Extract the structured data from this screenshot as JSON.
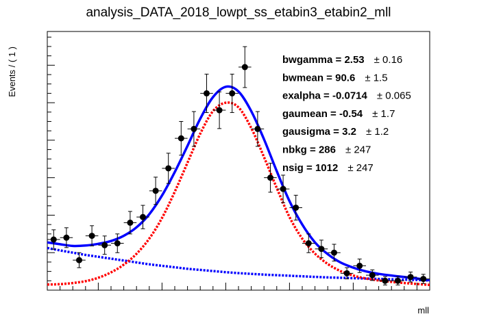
{
  "chart_data": {
    "type": "scatter",
    "title": "analysis_DATA_2018_lowpt_ss_etabin3_etabin2_mll",
    "xlabel": "mll",
    "ylabel": "Events / ( 1 )",
    "xlim": [
      76,
      106
    ],
    "ylim": [
      0,
      138
    ],
    "xticks": [
      80,
      85,
      90,
      95,
      100,
      105
    ],
    "yticks": [
      0,
      20,
      40,
      60,
      80,
      100,
      120
    ],
    "grid": false,
    "data_points": {
      "x": [
        76.5,
        77.5,
        78.5,
        79.5,
        80.5,
        81.5,
        82.5,
        83.5,
        84.5,
        85.5,
        86.5,
        87.5,
        88.5,
        89.5,
        90.5,
        91.5,
        92.5,
        93.5,
        94.5,
        95.5,
        96.5,
        97.5,
        98.5,
        99.5,
        100.5,
        101.5,
        102.5,
        103.5,
        104.5,
        105.5
      ],
      "y": [
        27,
        28,
        16,
        29,
        24,
        25,
        36,
        39,
        53,
        65,
        81,
        86,
        105,
        96,
        105,
        119,
        86,
        60,
        54,
        44,
        25,
        22,
        20,
        9,
        13,
        8,
        5,
        5,
        7,
        6
      ]
    },
    "series": [
      {
        "name": "",
        "style": "solid",
        "color": "#0000ff"
      },
      {
        "name": "",
        "style": "dotted",
        "color": "#ff0000"
      },
      {
        "name": "",
        "style": "dotted",
        "color": "#0000ff"
      }
    ],
    "curves": {
      "x": [
        76,
        77,
        78,
        79,
        80,
        81,
        82,
        83,
        84,
        85,
        86,
        87,
        88,
        89,
        90,
        91,
        92,
        93,
        94,
        95,
        96,
        97,
        98,
        99,
        100,
        101,
        102,
        103,
        104,
        105,
        106
      ],
      "total": [
        25.5,
        24.5,
        23.6,
        23.8,
        24.7,
        26.2,
        29,
        33.5,
        40.5,
        50.5,
        63,
        77,
        91.5,
        103,
        108.5,
        106,
        95.5,
        80.5,
        63.5,
        47.5,
        35,
        25.5,
        19.2,
        14.8,
        12,
        10,
        8.7,
        7.8,
        7,
        6.2,
        5.3
      ],
      "signal": [
        3,
        3.2,
        3.8,
        4.8,
        6.6,
        9.5,
        13.6,
        19.4,
        27.5,
        38.5,
        52.5,
        68,
        83.5,
        95.5,
        100,
        97.5,
        86.5,
        71,
        54.5,
        39,
        27.5,
        19.5,
        14,
        10.2,
        7.8,
        6.2,
        5.2,
        4.4,
        3.8,
        3.3,
        2.8
      ],
      "background": [
        22.5,
        21.2,
        20,
        18.8,
        17.8,
        16.8,
        15.8,
        14.8,
        13.8,
        13,
        12.2,
        11.4,
        10.8,
        10.2,
        9.6,
        9.1,
        8.7,
        8.3,
        8,
        7.7,
        7.4,
        7.1,
        6.8,
        6.6,
        6.4,
        6.2,
        6,
        5.8,
        5.6,
        5.4,
        5.2
      ]
    },
    "parameters": [
      {
        "name": "bwgamma",
        "value": "2.53",
        "error": "0.16"
      },
      {
        "name": "bwmean",
        "value": "90.6",
        "error": "1.5"
      },
      {
        "name": "exalpha",
        "value": "-0.0714",
        "error": "0.065"
      },
      {
        "name": "gaumean",
        "value": "-0.54",
        "error": "1.7"
      },
      {
        "name": "gausigma",
        "value": "3.2",
        "error": "1.2"
      },
      {
        "name": "nbkg",
        "value": "286",
        "error": "247"
      },
      {
        "name": "nsig",
        "value": "1012",
        "error": "247"
      }
    ]
  }
}
